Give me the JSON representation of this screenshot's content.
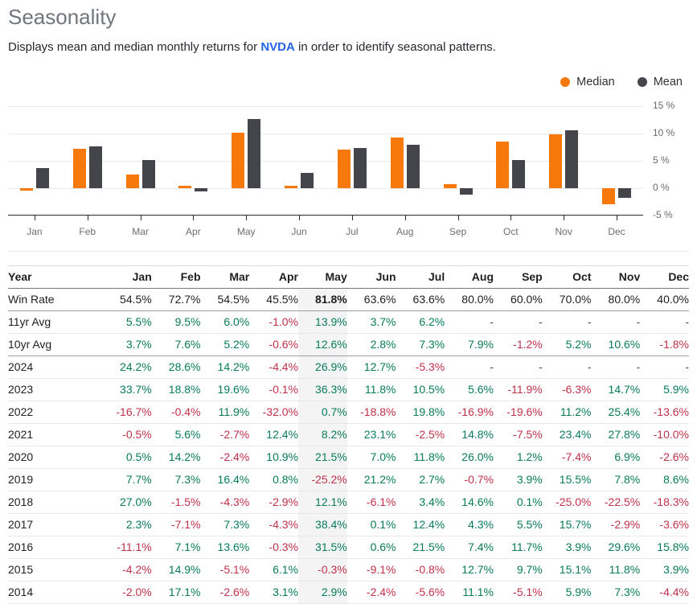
{
  "page": {
    "title": "Seasonality",
    "subtitle_prefix": "Displays mean and median monthly returns for ",
    "ticker": "NVDA",
    "subtitle_suffix": " in order to identify seasonal patterns."
  },
  "colors": {
    "median_orange": "#f8790b",
    "mean_dark": "#44454b",
    "positive_green": "#077b58",
    "negative_red": "#c0314a",
    "ticker_blue": "#2563eb",
    "highlight_column_bg": "#f4f4f5"
  },
  "chart_data": {
    "type": "bar",
    "categories": [
      "Jan",
      "Feb",
      "Mar",
      "Apr",
      "May",
      "Jun",
      "Jul",
      "Aug",
      "Sep",
      "Oct",
      "Nov",
      "Dec"
    ],
    "series": [
      {
        "name": "Median",
        "color": "#f8790b",
        "values": [
          -0.5,
          7.2,
          2.5,
          0.4,
          10.2,
          0.4,
          7.0,
          9.3,
          0.7,
          8.6,
          9.8,
          -3.0
        ]
      },
      {
        "name": "Mean",
        "color": "#44454b",
        "values": [
          3.7,
          7.6,
          5.2,
          -0.6,
          12.6,
          2.8,
          7.3,
          7.9,
          -1.2,
          5.2,
          10.6,
          -1.8
        ]
      }
    ],
    "ylim": [
      -5,
      15
    ],
    "yticks": [
      {
        "value": 15,
        "label": "15 %"
      },
      {
        "value": 10,
        "label": "10 %"
      },
      {
        "value": 5,
        "label": "5 %"
      },
      {
        "value": 0,
        "label": "0 %"
      },
      {
        "value": -5,
        "label": "-5 %"
      }
    ],
    "grid": true,
    "legend_position": "top-right",
    "title": "",
    "xlabel": "",
    "ylabel": ""
  },
  "table": {
    "highlight_column": "May",
    "columns": [
      "Year",
      "Jan",
      "Feb",
      "Mar",
      "Apr",
      "May",
      "Jun",
      "Jul",
      "Aug",
      "Sep",
      "Oct",
      "Nov",
      "Dec"
    ],
    "rows": [
      {
        "label": "Win Rate",
        "kind": "winrate",
        "strong_border": true,
        "values": [
          "54.5%",
          "72.7%",
          "54.5%",
          "45.5%",
          "81.8%",
          "63.6%",
          "63.6%",
          "80.0%",
          "60.0%",
          "70.0%",
          "80.0%",
          "40.0%"
        ]
      },
      {
        "label": "11yr Avg",
        "values": [
          "5.5%",
          "9.5%",
          "6.0%",
          "-1.0%",
          "13.9%",
          "3.7%",
          "6.2%",
          "-",
          "-",
          "-",
          "-",
          "-"
        ]
      },
      {
        "label": "10yr Avg",
        "strong_border": true,
        "values": [
          "3.7%",
          "7.6%",
          "5.2%",
          "-0.6%",
          "12.6%",
          "2.8%",
          "7.3%",
          "7.9%",
          "-1.2%",
          "5.2%",
          "10.6%",
          "-1.8%"
        ]
      },
      {
        "label": "2024",
        "values": [
          "24.2%",
          "28.6%",
          "14.2%",
          "-4.4%",
          "26.9%",
          "12.7%",
          "-5.3%",
          "-",
          "-",
          "-",
          "-",
          "-"
        ]
      },
      {
        "label": "2023",
        "values": [
          "33.7%",
          "18.8%",
          "19.6%",
          "-0.1%",
          "36.3%",
          "11.8%",
          "10.5%",
          "5.6%",
          "-11.9%",
          "-6.3%",
          "14.7%",
          "5.9%"
        ]
      },
      {
        "label": "2022",
        "values": [
          "-16.7%",
          "-0.4%",
          "11.9%",
          "-32.0%",
          "0.7%",
          "-18.8%",
          "19.8%",
          "-16.9%",
          "-19.6%",
          "11.2%",
          "25.4%",
          "-13.6%"
        ]
      },
      {
        "label": "2021",
        "values": [
          "-0.5%",
          "5.6%",
          "-2.7%",
          "12.4%",
          "8.2%",
          "23.1%",
          "-2.5%",
          "14.8%",
          "-7.5%",
          "23.4%",
          "27.8%",
          "-10.0%"
        ]
      },
      {
        "label": "2020",
        "values": [
          "0.5%",
          "14.2%",
          "-2.4%",
          "10.9%",
          "21.5%",
          "7.0%",
          "11.8%",
          "26.0%",
          "1.2%",
          "-7.4%",
          "6.9%",
          "-2.6%"
        ]
      },
      {
        "label": "2019",
        "values": [
          "7.7%",
          "7.3%",
          "16.4%",
          "0.8%",
          "-25.2%",
          "21.2%",
          "2.7%",
          "-0.7%",
          "3.9%",
          "15.5%",
          "7.8%",
          "8.6%"
        ]
      },
      {
        "label": "2018",
        "values": [
          "27.0%",
          "-1.5%",
          "-4.3%",
          "-2.9%",
          "12.1%",
          "-6.1%",
          "3.4%",
          "14.6%",
          "0.1%",
          "-25.0%",
          "-22.5%",
          "-18.3%"
        ]
      },
      {
        "label": "2017",
        "values": [
          "2.3%",
          "-7.1%",
          "7.3%",
          "-4.3%",
          "38.4%",
          "0.1%",
          "12.4%",
          "4.3%",
          "5.5%",
          "15.7%",
          "-2.9%",
          "-3.6%"
        ]
      },
      {
        "label": "2016",
        "values": [
          "-11.1%",
          "7.1%",
          "13.6%",
          "-0.3%",
          "31.5%",
          "0.6%",
          "21.5%",
          "7.4%",
          "11.7%",
          "3.9%",
          "29.6%",
          "15.8%"
        ]
      },
      {
        "label": "2015",
        "values": [
          "-4.2%",
          "14.9%",
          "-5.1%",
          "6.1%",
          "-0.3%",
          "-9.1%",
          "-0.8%",
          "12.7%",
          "9.7%",
          "15.1%",
          "11.8%",
          "3.9%"
        ]
      },
      {
        "label": "2014",
        "values": [
          "-2.0%",
          "17.1%",
          "-2.6%",
          "3.1%",
          "2.9%",
          "-2.4%",
          "-5.6%",
          "11.1%",
          "-5.1%",
          "5.9%",
          "7.3%",
          "-4.4%"
        ]
      }
    ]
  }
}
